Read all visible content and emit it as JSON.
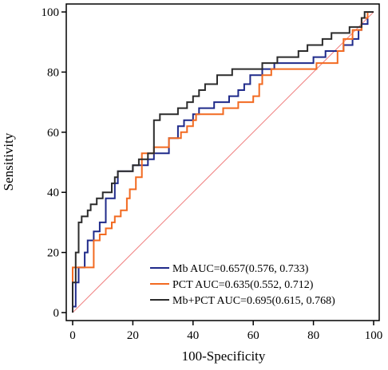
{
  "chart_data": {
    "type": "line",
    "xlabel": "100-Specificity",
    "ylabel": "Sensitivity",
    "xlim": [
      0,
      100
    ],
    "ylim": [
      0,
      100
    ],
    "xticks": [
      0,
      20,
      40,
      60,
      80,
      100
    ],
    "yticks": [
      0,
      20,
      40,
      60,
      80,
      100
    ],
    "grid": false,
    "legend_position": "bottom-right",
    "reference_line": {
      "x": [
        0,
        100
      ],
      "y": [
        0,
        100
      ],
      "color": "#f08080"
    },
    "series": [
      {
        "name": "Mb AUC=0.657(0.576, 0.733)",
        "color": "#1f2a8a",
        "points": [
          [
            0,
            0
          ],
          [
            0,
            2
          ],
          [
            1,
            2
          ],
          [
            1,
            10
          ],
          [
            2,
            10
          ],
          [
            2,
            15
          ],
          [
            4,
            15
          ],
          [
            4,
            20
          ],
          [
            5,
            20
          ],
          [
            5,
            24
          ],
          [
            7,
            24
          ],
          [
            7,
            27
          ],
          [
            9,
            27
          ],
          [
            9,
            30
          ],
          [
            11,
            30
          ],
          [
            11,
            38
          ],
          [
            14,
            38
          ],
          [
            14,
            43
          ],
          [
            15,
            43
          ],
          [
            15,
            47
          ],
          [
            20,
            47
          ],
          [
            20,
            49
          ],
          [
            25,
            49
          ],
          [
            25,
            51
          ],
          [
            27,
            51
          ],
          [
            27,
            53
          ],
          [
            32,
            53
          ],
          [
            32,
            58
          ],
          [
            35,
            58
          ],
          [
            35,
            62
          ],
          [
            37,
            62
          ],
          [
            37,
            64
          ],
          [
            40,
            64
          ],
          [
            40,
            66
          ],
          [
            42,
            66
          ],
          [
            42,
            68
          ],
          [
            47,
            68
          ],
          [
            47,
            70
          ],
          [
            52,
            70
          ],
          [
            52,
            72
          ],
          [
            55,
            72
          ],
          [
            55,
            74
          ],
          [
            57,
            74
          ],
          [
            57,
            76
          ],
          [
            59,
            76
          ],
          [
            59,
            79
          ],
          [
            63,
            79
          ],
          [
            63,
            81
          ],
          [
            67,
            81
          ],
          [
            67,
            83
          ],
          [
            80,
            83
          ],
          [
            80,
            85
          ],
          [
            84,
            85
          ],
          [
            84,
            87
          ],
          [
            90,
            87
          ],
          [
            90,
            89
          ],
          [
            93,
            89
          ],
          [
            93,
            91
          ],
          [
            95,
            91
          ],
          [
            95,
            94
          ],
          [
            96,
            94
          ],
          [
            96,
            96
          ],
          [
            98,
            96
          ],
          [
            98,
            100
          ],
          [
            100,
            100
          ]
        ]
      },
      {
        "name": "PCT AUC=0.635(0.552, 0.712)",
        "color": "#f26a21",
        "points": [
          [
            0,
            0
          ],
          [
            0,
            15
          ],
          [
            7,
            15
          ],
          [
            7,
            24
          ],
          [
            9,
            24
          ],
          [
            9,
            26
          ],
          [
            11,
            26
          ],
          [
            11,
            28
          ],
          [
            13,
            28
          ],
          [
            13,
            30
          ],
          [
            14,
            30
          ],
          [
            14,
            32
          ],
          [
            16,
            32
          ],
          [
            16,
            34
          ],
          [
            18,
            34
          ],
          [
            18,
            38
          ],
          [
            19,
            38
          ],
          [
            19,
            41
          ],
          [
            21,
            41
          ],
          [
            21,
            45
          ],
          [
            23,
            45
          ],
          [
            23,
            53
          ],
          [
            27,
            53
          ],
          [
            27,
            55
          ],
          [
            32,
            55
          ],
          [
            32,
            58
          ],
          [
            36,
            58
          ],
          [
            36,
            60
          ],
          [
            38,
            60
          ],
          [
            38,
            62
          ],
          [
            40,
            62
          ],
          [
            40,
            64
          ],
          [
            41,
            64
          ],
          [
            41,
            66
          ],
          [
            50,
            66
          ],
          [
            50,
            68
          ],
          [
            55,
            68
          ],
          [
            55,
            70
          ],
          [
            60,
            70
          ],
          [
            60,
            72
          ],
          [
            62,
            72
          ],
          [
            62,
            76
          ],
          [
            63,
            76
          ],
          [
            63,
            79
          ],
          [
            66,
            79
          ],
          [
            66,
            81
          ],
          [
            81,
            81
          ],
          [
            81,
            83
          ],
          [
            88,
            83
          ],
          [
            88,
            87
          ],
          [
            90,
            87
          ],
          [
            90,
            91
          ],
          [
            93,
            91
          ],
          [
            93,
            94
          ],
          [
            96,
            94
          ],
          [
            96,
            98
          ],
          [
            98,
            98
          ],
          [
            98,
            100
          ],
          [
            100,
            100
          ]
        ]
      },
      {
        "name": "Mb+PCT AUC=0.695(0.615, 0.768)",
        "color": "#2b2b2b",
        "points": [
          [
            0,
            0
          ],
          [
            0,
            10
          ],
          [
            1,
            10
          ],
          [
            1,
            20
          ],
          [
            2,
            20
          ],
          [
            2,
            30
          ],
          [
            3,
            30
          ],
          [
            3,
            32
          ],
          [
            5,
            32
          ],
          [
            5,
            34
          ],
          [
            6,
            34
          ],
          [
            6,
            36
          ],
          [
            8,
            36
          ],
          [
            8,
            38
          ],
          [
            10,
            38
          ],
          [
            10,
            40
          ],
          [
            13,
            40
          ],
          [
            13,
            43
          ],
          [
            14,
            43
          ],
          [
            14,
            45
          ],
          [
            15,
            45
          ],
          [
            15,
            47
          ],
          [
            20,
            47
          ],
          [
            20,
            49
          ],
          [
            22,
            49
          ],
          [
            22,
            51
          ],
          [
            25,
            51
          ],
          [
            25,
            53
          ],
          [
            27,
            53
          ],
          [
            27,
            64
          ],
          [
            29,
            64
          ],
          [
            29,
            66
          ],
          [
            35,
            66
          ],
          [
            35,
            68
          ],
          [
            38,
            68
          ],
          [
            38,
            70
          ],
          [
            40,
            70
          ],
          [
            40,
            72
          ],
          [
            42,
            72
          ],
          [
            42,
            74
          ],
          [
            44,
            74
          ],
          [
            44,
            76
          ],
          [
            48,
            76
          ],
          [
            48,
            79
          ],
          [
            53,
            79
          ],
          [
            53,
            81
          ],
          [
            63,
            81
          ],
          [
            63,
            83
          ],
          [
            68,
            83
          ],
          [
            68,
            85
          ],
          [
            75,
            85
          ],
          [
            75,
            87
          ],
          [
            78,
            87
          ],
          [
            78,
            89
          ],
          [
            83,
            89
          ],
          [
            83,
            91
          ],
          [
            86,
            91
          ],
          [
            86,
            93
          ],
          [
            92,
            93
          ],
          [
            92,
            95
          ],
          [
            96,
            95
          ],
          [
            96,
            98
          ],
          [
            97,
            98
          ],
          [
            97,
            100
          ],
          [
            100,
            100
          ]
        ]
      }
    ]
  }
}
